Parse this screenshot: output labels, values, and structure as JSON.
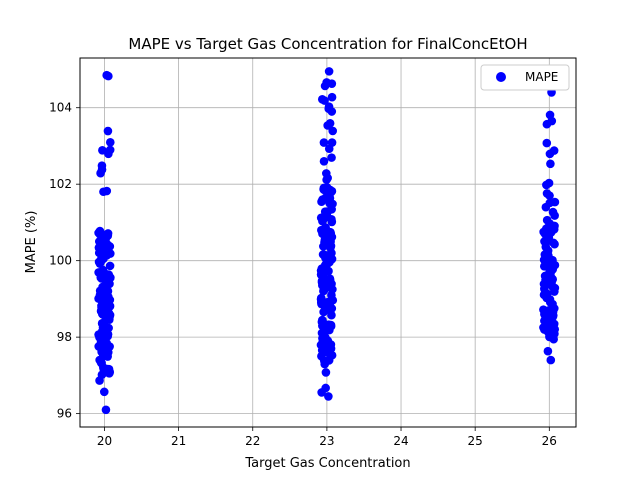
{
  "chart_data": {
    "type": "scatter",
    "title": "MAPE vs Target Gas Concentration for FinalConcEtOH",
    "xlabel": "Target Gas Concentration",
    "ylabel": "MAPE (%)",
    "xlim": [
      19.67,
      26.36
    ],
    "ylim": [
      95.65,
      105.3
    ],
    "xticks": [
      "20",
      "21",
      "22",
      "23",
      "24",
      "25",
      "26"
    ],
    "yticks": [
      "96",
      "98",
      "100",
      "102",
      "104"
    ],
    "grid": true,
    "legend_position": "top-right",
    "marker_color": "#0000ff",
    "series": [
      {
        "name": "MAPE",
        "groups": [
          {
            "x": 20,
            "y_min": 96.1,
            "y_max": 104.85,
            "dense_min": 97.0,
            "dense_max": 100.8,
            "count": 140
          },
          {
            "x": 23,
            "y_min": 96.45,
            "y_max": 104.95,
            "dense_min": 97.5,
            "dense_max": 102.0,
            "count": 160
          },
          {
            "x": 26,
            "y_min": 97.4,
            "y_max": 104.4,
            "dense_min": 98.0,
            "dense_max": 101.0,
            "count": 110
          }
        ]
      }
    ]
  }
}
